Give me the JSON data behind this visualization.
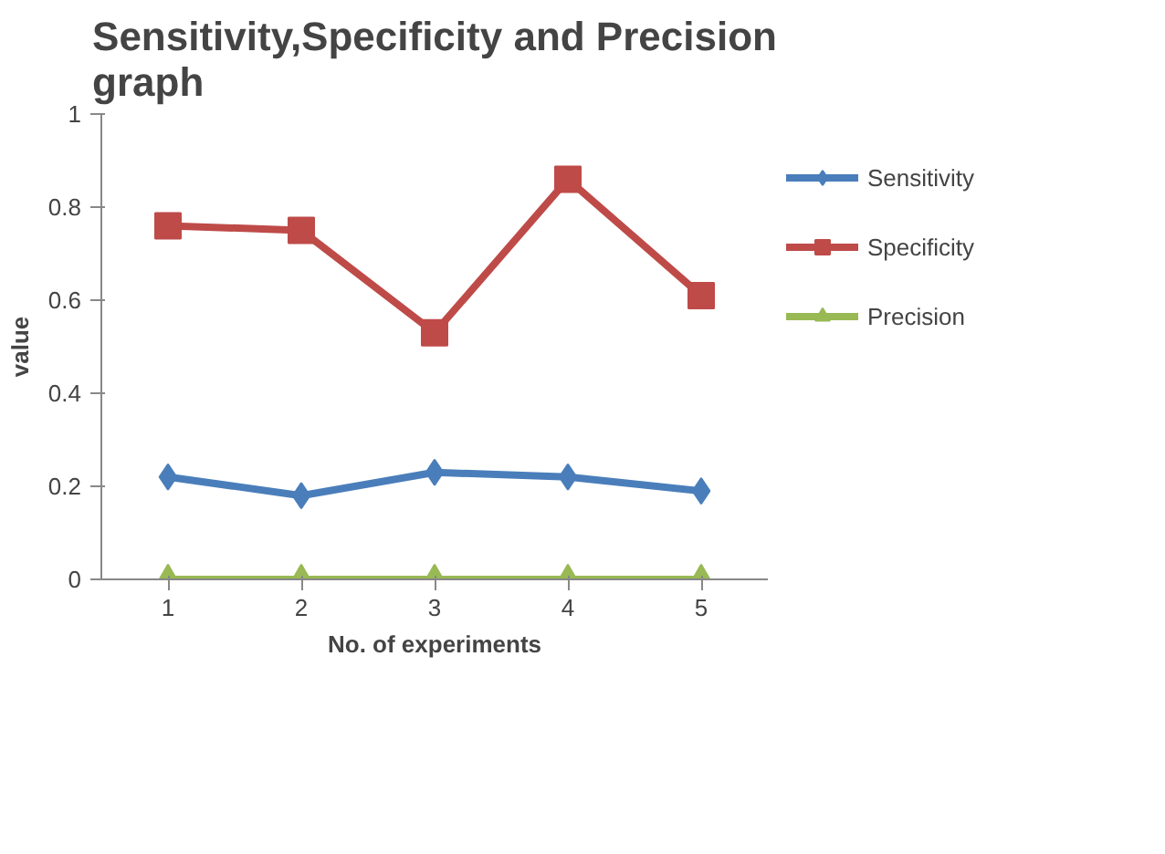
{
  "chart_data": {
    "type": "line",
    "title": "Sensitivity,Specificity and Precision\ngraph",
    "xlabel": "No. of experiments",
    "ylabel": "value",
    "x": [
      1,
      2,
      3,
      4,
      5
    ],
    "xlim": [
      0.5,
      5.5
    ],
    "xticks": [
      1,
      2,
      3,
      4,
      5
    ],
    "ylim": [
      0,
      1
    ],
    "yticks": [
      0,
      0.2,
      0.4,
      0.6,
      0.8,
      1
    ],
    "grid": false,
    "legend": "right",
    "series": [
      {
        "name": "Sensitivity",
        "color": "#4a7ebb",
        "marker": "diamond",
        "values": [
          0.22,
          0.18,
          0.23,
          0.22,
          0.19
        ]
      },
      {
        "name": "Specificity",
        "color": "#be4b48",
        "marker": "square",
        "values": [
          0.76,
          0.75,
          0.53,
          0.86,
          0.61
        ]
      },
      {
        "name": "Precision",
        "color": "#98b954",
        "marker": "triangle",
        "values": [
          0,
          0,
          0,
          0,
          0
        ]
      }
    ]
  }
}
